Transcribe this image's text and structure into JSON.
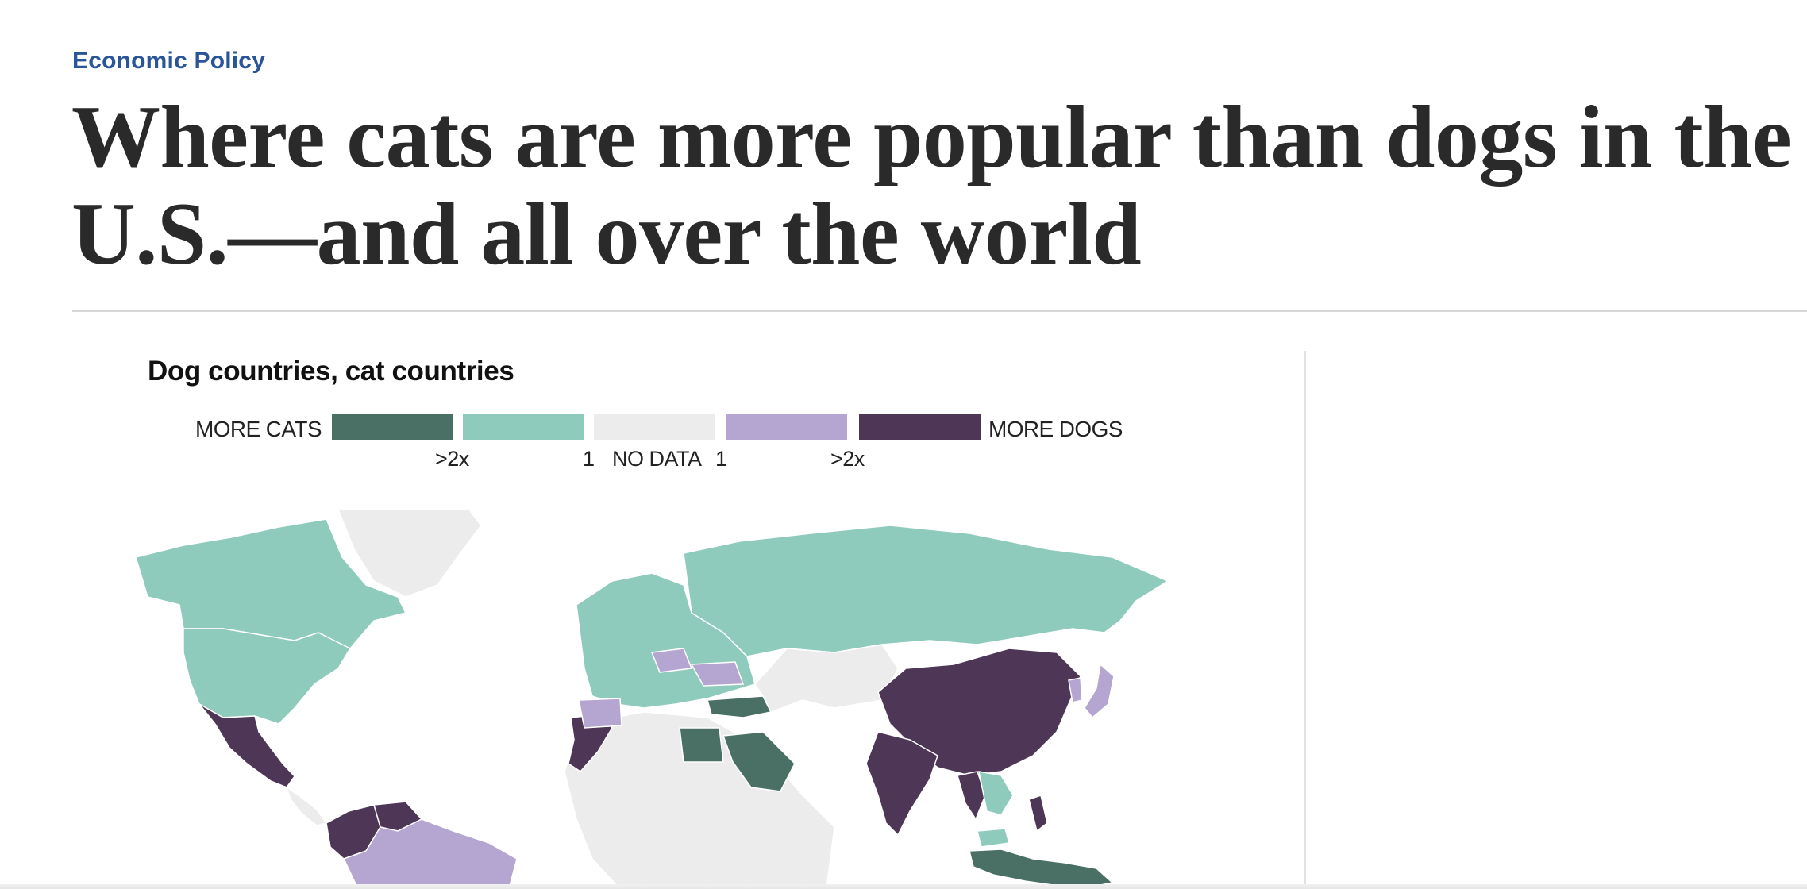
{
  "article": {
    "kicker": "Economic Policy",
    "headline_line1": "Where cats are more popular than dogs in the",
    "headline_line2": "U.S.—and all over the world"
  },
  "graphic": {
    "title": "Dog countries, cat countries",
    "legend": {
      "left_label": "MORE CATS",
      "right_label": "MORE DOGS",
      "ticks": [
        ">2x",
        "1",
        "NO DATA",
        "1",
        ">2x"
      ],
      "bins": [
        {
          "name": "cats_gt_2x",
          "color": "#4a6f65"
        },
        {
          "name": "cats_1_2x",
          "color": "#8fcbbd"
        },
        {
          "name": "no_data",
          "color": "#ececec"
        },
        {
          "name": "dogs_1_2x",
          "color": "#b4a6d0"
        },
        {
          "name": "dogs_gt_2x",
          "color": "#4d3656"
        }
      ]
    }
  },
  "map_data": {
    "type": "choropleth",
    "projection": "world",
    "regions": [
      {
        "name": "United States",
        "bin": "cats_1_2x"
      },
      {
        "name": "Canada",
        "bin": "cats_1_2x"
      },
      {
        "name": "Mexico",
        "bin": "dogs_gt_2x"
      },
      {
        "name": "Greenland",
        "bin": "no_data"
      },
      {
        "name": "Colombia",
        "bin": "dogs_gt_2x"
      },
      {
        "name": "Venezuela",
        "bin": "dogs_gt_2x"
      },
      {
        "name": "Brazil",
        "bin": "dogs_1_2x"
      },
      {
        "name": "Russia",
        "bin": "cats_1_2x"
      },
      {
        "name": "Europe (most)",
        "bin": "cats_1_2x"
      },
      {
        "name": "Spain",
        "bin": "dogs_1_2x"
      },
      {
        "name": "Poland",
        "bin": "dogs_1_2x"
      },
      {
        "name": "Ukraine",
        "bin": "dogs_1_2x"
      },
      {
        "name": "Turkey",
        "bin": "cats_gt_2x"
      },
      {
        "name": "Morocco",
        "bin": "dogs_gt_2x"
      },
      {
        "name": "Egypt",
        "bin": "cats_gt_2x"
      },
      {
        "name": "Saudi Arabia",
        "bin": "cats_gt_2x"
      },
      {
        "name": "China",
        "bin": "dogs_gt_2x"
      },
      {
        "name": "India",
        "bin": "dogs_gt_2x"
      },
      {
        "name": "Thailand",
        "bin": "dogs_gt_2x"
      },
      {
        "name": "Philippines",
        "bin": "dogs_gt_2x"
      },
      {
        "name": "Japan",
        "bin": "dogs_1_2x"
      },
      {
        "name": "Indonesia",
        "bin": "cats_gt_2x"
      },
      {
        "name": "Malaysia",
        "bin": "cats_1_2x"
      },
      {
        "name": "Africa (most)",
        "bin": "no_data"
      }
    ]
  }
}
